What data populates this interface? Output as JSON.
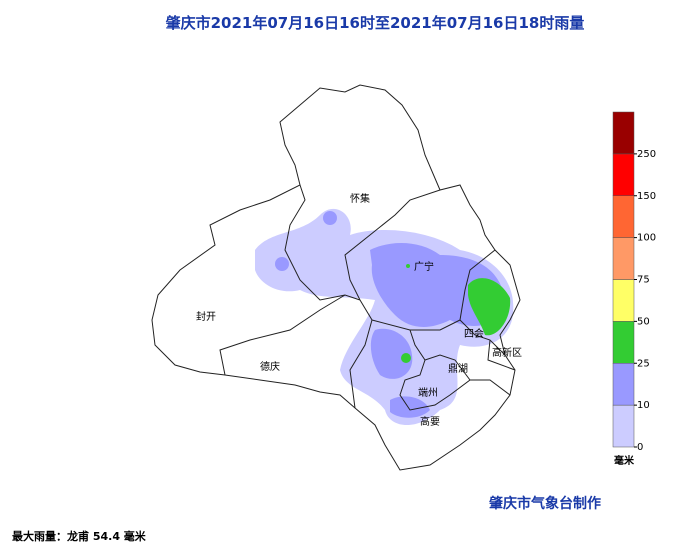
{
  "header": {
    "title": "肇庆市2021年07月16日16时至2021年07月16日18时雨量"
  },
  "places": [
    "怀集",
    "广宁",
    "封开",
    "德庆",
    "四会",
    "鼎湖",
    "端州",
    "高要",
    "高新区"
  ],
  "legend": {
    "ticks": [
      0,
      10,
      25,
      50,
      75,
      100,
      150,
      250
    ],
    "colors": [
      "#ccccff",
      "#9999ff",
      "#33cc33",
      "#ffff66",
      "#ff9966",
      "#ff6633",
      "#ff0000",
      "#990000"
    ],
    "unit": "毫米"
  },
  "footer": {
    "credit": "肇庆市气象台制作",
    "max_rain": "最大雨量：龙甫 54.4 毫米"
  }
}
